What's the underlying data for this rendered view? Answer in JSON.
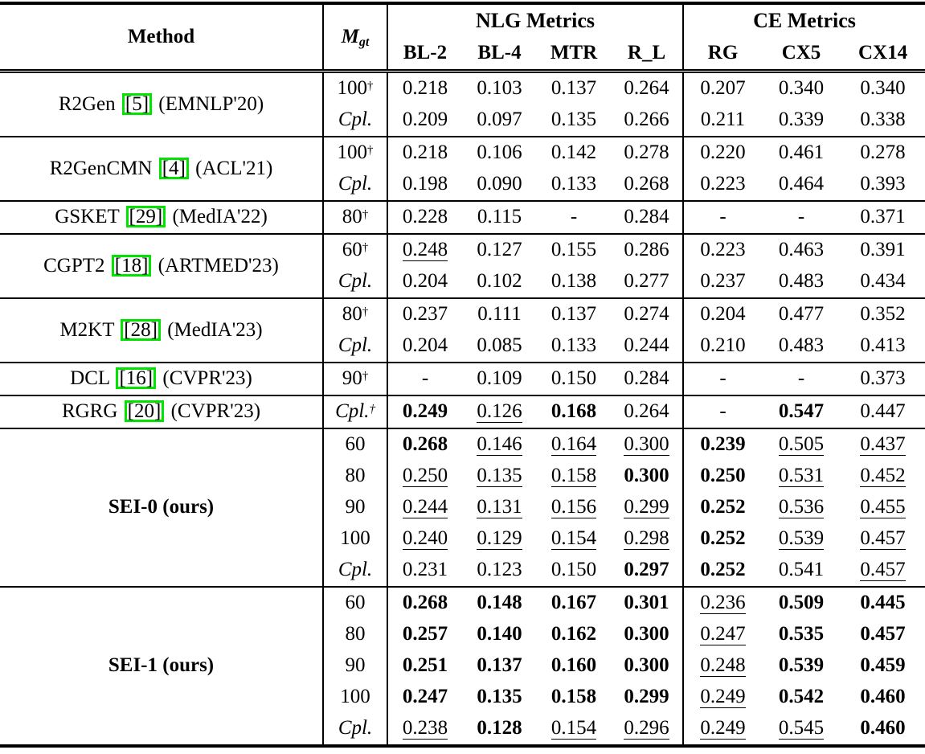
{
  "accent": {
    "citation_box_green": "#00E400"
  },
  "header": {
    "method": "Method",
    "mgt_base": "M",
    "mgt_sub": "gt",
    "nlg_label": "NLG Metrics",
    "ce_label": "CE Metrics",
    "nlg_cols": [
      "BL-2",
      "BL-4",
      "MTR",
      "R_L"
    ],
    "ce_cols": [
      "RG",
      "CX5",
      "CX14"
    ]
  },
  "chart_data": {
    "type": "table",
    "columns": [
      "Method",
      "M_gt",
      "BL-2",
      "BL-4",
      "MTR",
      "R_L",
      "RG",
      "CX5",
      "CX14"
    ],
    "note": "s flag: b=bold, u=underline, empty=plain; dagger=true means superscript dagger on M_gt"
  },
  "groups": [
    {
      "method": {
        "name": "R2Gen",
        "cite": "5",
        "venue": "(EMNLP'20)",
        "bold": false
      },
      "rows": [
        {
          "mgt": {
            "t": "100",
            "dagger": true,
            "italic": false
          },
          "vals": [
            {
              "t": "0.218",
              "s": ""
            },
            {
              "t": "0.103",
              "s": ""
            },
            {
              "t": "0.137",
              "s": ""
            },
            {
              "t": "0.264",
              "s": ""
            },
            {
              "t": "0.207",
              "s": ""
            },
            {
              "t": "0.340",
              "s": ""
            },
            {
              "t": "0.340",
              "s": ""
            }
          ]
        },
        {
          "mgt": {
            "t": "Cpl.",
            "dagger": false,
            "italic": true
          },
          "vals": [
            {
              "t": "0.209",
              "s": ""
            },
            {
              "t": "0.097",
              "s": ""
            },
            {
              "t": "0.135",
              "s": ""
            },
            {
              "t": "0.266",
              "s": ""
            },
            {
              "t": "0.211",
              "s": ""
            },
            {
              "t": "0.339",
              "s": ""
            },
            {
              "t": "0.338",
              "s": ""
            }
          ]
        }
      ]
    },
    {
      "method": {
        "name": "R2GenCMN",
        "cite": "4",
        "venue": "(ACL'21)",
        "bold": false
      },
      "rows": [
        {
          "mgt": {
            "t": "100",
            "dagger": true,
            "italic": false
          },
          "vals": [
            {
              "t": "0.218",
              "s": ""
            },
            {
              "t": "0.106",
              "s": ""
            },
            {
              "t": "0.142",
              "s": ""
            },
            {
              "t": "0.278",
              "s": ""
            },
            {
              "t": "0.220",
              "s": ""
            },
            {
              "t": "0.461",
              "s": ""
            },
            {
              "t": "0.278",
              "s": ""
            }
          ]
        },
        {
          "mgt": {
            "t": "Cpl.",
            "dagger": false,
            "italic": true
          },
          "vals": [
            {
              "t": "0.198",
              "s": ""
            },
            {
              "t": "0.090",
              "s": ""
            },
            {
              "t": "0.133",
              "s": ""
            },
            {
              "t": "0.268",
              "s": ""
            },
            {
              "t": "0.223",
              "s": ""
            },
            {
              "t": "0.464",
              "s": ""
            },
            {
              "t": "0.393",
              "s": ""
            }
          ]
        }
      ]
    },
    {
      "method": {
        "name": "GSKET",
        "cite": "29",
        "venue": "(MedIA'22)",
        "bold": false
      },
      "rows": [
        {
          "mgt": {
            "t": "80",
            "dagger": true,
            "italic": false
          },
          "vals": [
            {
              "t": "0.228",
              "s": ""
            },
            {
              "t": "0.115",
              "s": ""
            },
            {
              "t": "-",
              "s": ""
            },
            {
              "t": "0.284",
              "s": ""
            },
            {
              "t": "-",
              "s": ""
            },
            {
              "t": "-",
              "s": ""
            },
            {
              "t": "0.371",
              "s": ""
            }
          ]
        }
      ]
    },
    {
      "method": {
        "name": "CGPT2",
        "cite": "18",
        "venue": "(ARTMED'23)",
        "bold": false
      },
      "rows": [
        {
          "mgt": {
            "t": "60",
            "dagger": true,
            "italic": false
          },
          "vals": [
            {
              "t": "0.248",
              "s": "u"
            },
            {
              "t": "0.127",
              "s": ""
            },
            {
              "t": "0.155",
              "s": ""
            },
            {
              "t": "0.286",
              "s": ""
            },
            {
              "t": "0.223",
              "s": ""
            },
            {
              "t": "0.463",
              "s": ""
            },
            {
              "t": "0.391",
              "s": ""
            }
          ]
        },
        {
          "mgt": {
            "t": "Cpl.",
            "dagger": false,
            "italic": true
          },
          "vals": [
            {
              "t": "0.204",
              "s": ""
            },
            {
              "t": "0.102",
              "s": ""
            },
            {
              "t": "0.138",
              "s": ""
            },
            {
              "t": "0.277",
              "s": ""
            },
            {
              "t": "0.237",
              "s": ""
            },
            {
              "t": "0.483",
              "s": ""
            },
            {
              "t": "0.434",
              "s": ""
            }
          ]
        }
      ]
    },
    {
      "method": {
        "name": "M2KT",
        "cite": "28",
        "venue": "(MedIA'23)",
        "bold": false
      },
      "rows": [
        {
          "mgt": {
            "t": "80",
            "dagger": true,
            "italic": false
          },
          "vals": [
            {
              "t": "0.237",
              "s": ""
            },
            {
              "t": "0.111",
              "s": ""
            },
            {
              "t": "0.137",
              "s": ""
            },
            {
              "t": "0.274",
              "s": ""
            },
            {
              "t": "0.204",
              "s": ""
            },
            {
              "t": "0.477",
              "s": ""
            },
            {
              "t": "0.352",
              "s": ""
            }
          ]
        },
        {
          "mgt": {
            "t": "Cpl.",
            "dagger": false,
            "italic": true
          },
          "vals": [
            {
              "t": "0.204",
              "s": ""
            },
            {
              "t": "0.085",
              "s": ""
            },
            {
              "t": "0.133",
              "s": ""
            },
            {
              "t": "0.244",
              "s": ""
            },
            {
              "t": "0.210",
              "s": ""
            },
            {
              "t": "0.483",
              "s": ""
            },
            {
              "t": "0.413",
              "s": ""
            }
          ]
        }
      ]
    },
    {
      "method": {
        "name": "DCL",
        "cite": "16",
        "venue": "(CVPR'23)",
        "bold": false
      },
      "rows": [
        {
          "mgt": {
            "t": "90",
            "dagger": true,
            "italic": false
          },
          "vals": [
            {
              "t": "-",
              "s": ""
            },
            {
              "t": "0.109",
              "s": ""
            },
            {
              "t": "0.150",
              "s": ""
            },
            {
              "t": "0.284",
              "s": ""
            },
            {
              "t": "-",
              "s": ""
            },
            {
              "t": "-",
              "s": ""
            },
            {
              "t": "0.373",
              "s": ""
            }
          ]
        }
      ]
    },
    {
      "method": {
        "name": "RGRG",
        "cite": "20",
        "venue": "(CVPR'23)",
        "bold": false
      },
      "rows": [
        {
          "mgt": {
            "t": "Cpl.",
            "dagger": true,
            "italic": true
          },
          "vals": [
            {
              "t": "0.249",
              "s": "b"
            },
            {
              "t": "0.126",
              "s": "u"
            },
            {
              "t": "0.168",
              "s": "b"
            },
            {
              "t": "0.264",
              "s": ""
            },
            {
              "t": "-",
              "s": ""
            },
            {
              "t": "0.547",
              "s": "b"
            },
            {
              "t": "0.447",
              "s": ""
            }
          ]
        }
      ]
    },
    {
      "method": {
        "name": "SEI-0 (ours)",
        "cite": "",
        "venue": "",
        "bold": true
      },
      "rows": [
        {
          "mgt": {
            "t": "60",
            "dagger": false,
            "italic": false
          },
          "vals": [
            {
              "t": "0.268",
              "s": "b"
            },
            {
              "t": "0.146",
              "s": "u"
            },
            {
              "t": "0.164",
              "s": "u"
            },
            {
              "t": "0.300",
              "s": "u"
            },
            {
              "t": "0.239",
              "s": "b"
            },
            {
              "t": "0.505",
              "s": "u"
            },
            {
              "t": "0.437",
              "s": "u"
            }
          ]
        },
        {
          "mgt": {
            "t": "80",
            "dagger": false,
            "italic": false
          },
          "vals": [
            {
              "t": "0.250",
              "s": "u"
            },
            {
              "t": "0.135",
              "s": "u"
            },
            {
              "t": "0.158",
              "s": "u"
            },
            {
              "t": "0.300",
              "s": "b"
            },
            {
              "t": "0.250",
              "s": "b"
            },
            {
              "t": "0.531",
              "s": "u"
            },
            {
              "t": "0.452",
              "s": "u"
            }
          ]
        },
        {
          "mgt": {
            "t": "90",
            "dagger": false,
            "italic": false
          },
          "vals": [
            {
              "t": "0.244",
              "s": "u"
            },
            {
              "t": "0.131",
              "s": "u"
            },
            {
              "t": "0.156",
              "s": "u"
            },
            {
              "t": "0.299",
              "s": "u"
            },
            {
              "t": "0.252",
              "s": "b"
            },
            {
              "t": "0.536",
              "s": "u"
            },
            {
              "t": "0.455",
              "s": "u"
            }
          ]
        },
        {
          "mgt": {
            "t": "100",
            "dagger": false,
            "italic": false
          },
          "vals": [
            {
              "t": "0.240",
              "s": "u"
            },
            {
              "t": "0.129",
              "s": "u"
            },
            {
              "t": "0.154",
              "s": "u"
            },
            {
              "t": "0.298",
              "s": "u"
            },
            {
              "t": "0.252",
              "s": "b"
            },
            {
              "t": "0.539",
              "s": "u"
            },
            {
              "t": "0.457",
              "s": "u"
            }
          ]
        },
        {
          "mgt": {
            "t": "Cpl.",
            "dagger": false,
            "italic": true
          },
          "vals": [
            {
              "t": "0.231",
              "s": ""
            },
            {
              "t": "0.123",
              "s": ""
            },
            {
              "t": "0.150",
              "s": ""
            },
            {
              "t": "0.297",
              "s": "b"
            },
            {
              "t": "0.252",
              "s": "b"
            },
            {
              "t": "0.541",
              "s": ""
            },
            {
              "t": "0.457",
              "s": "u"
            }
          ]
        }
      ]
    },
    {
      "method": {
        "name": "SEI-1 (ours)",
        "cite": "",
        "venue": "",
        "bold": true
      },
      "rows": [
        {
          "mgt": {
            "t": "60",
            "dagger": false,
            "italic": false
          },
          "vals": [
            {
              "t": "0.268",
              "s": "b"
            },
            {
              "t": "0.148",
              "s": "b"
            },
            {
              "t": "0.167",
              "s": "b"
            },
            {
              "t": "0.301",
              "s": "b"
            },
            {
              "t": "0.236",
              "s": "u"
            },
            {
              "t": "0.509",
              "s": "b"
            },
            {
              "t": "0.445",
              "s": "b"
            }
          ]
        },
        {
          "mgt": {
            "t": "80",
            "dagger": false,
            "italic": false
          },
          "vals": [
            {
              "t": "0.257",
              "s": "b"
            },
            {
              "t": "0.140",
              "s": "b"
            },
            {
              "t": "0.162",
              "s": "b"
            },
            {
              "t": "0.300",
              "s": "b"
            },
            {
              "t": "0.247",
              "s": "u"
            },
            {
              "t": "0.535",
              "s": "b"
            },
            {
              "t": "0.457",
              "s": "b"
            }
          ]
        },
        {
          "mgt": {
            "t": "90",
            "dagger": false,
            "italic": false
          },
          "vals": [
            {
              "t": "0.251",
              "s": "b"
            },
            {
              "t": "0.137",
              "s": "b"
            },
            {
              "t": "0.160",
              "s": "b"
            },
            {
              "t": "0.300",
              "s": "b"
            },
            {
              "t": "0.248",
              "s": "u"
            },
            {
              "t": "0.539",
              "s": "b"
            },
            {
              "t": "0.459",
              "s": "b"
            }
          ]
        },
        {
          "mgt": {
            "t": "100",
            "dagger": false,
            "italic": false
          },
          "vals": [
            {
              "t": "0.247",
              "s": "b"
            },
            {
              "t": "0.135",
              "s": "b"
            },
            {
              "t": "0.158",
              "s": "b"
            },
            {
              "t": "0.299",
              "s": "b"
            },
            {
              "t": "0.249",
              "s": "u"
            },
            {
              "t": "0.542",
              "s": "b"
            },
            {
              "t": "0.460",
              "s": "b"
            }
          ]
        },
        {
          "mgt": {
            "t": "Cpl.",
            "dagger": false,
            "italic": true
          },
          "vals": [
            {
              "t": "0.238",
              "s": "u"
            },
            {
              "t": "0.128",
              "s": "b"
            },
            {
              "t": "0.154",
              "s": "u"
            },
            {
              "t": "0.296",
              "s": "u"
            },
            {
              "t": "0.249",
              "s": "u"
            },
            {
              "t": "0.545",
              "s": "u"
            },
            {
              "t": "0.460",
              "s": "b"
            }
          ]
        }
      ]
    }
  ]
}
